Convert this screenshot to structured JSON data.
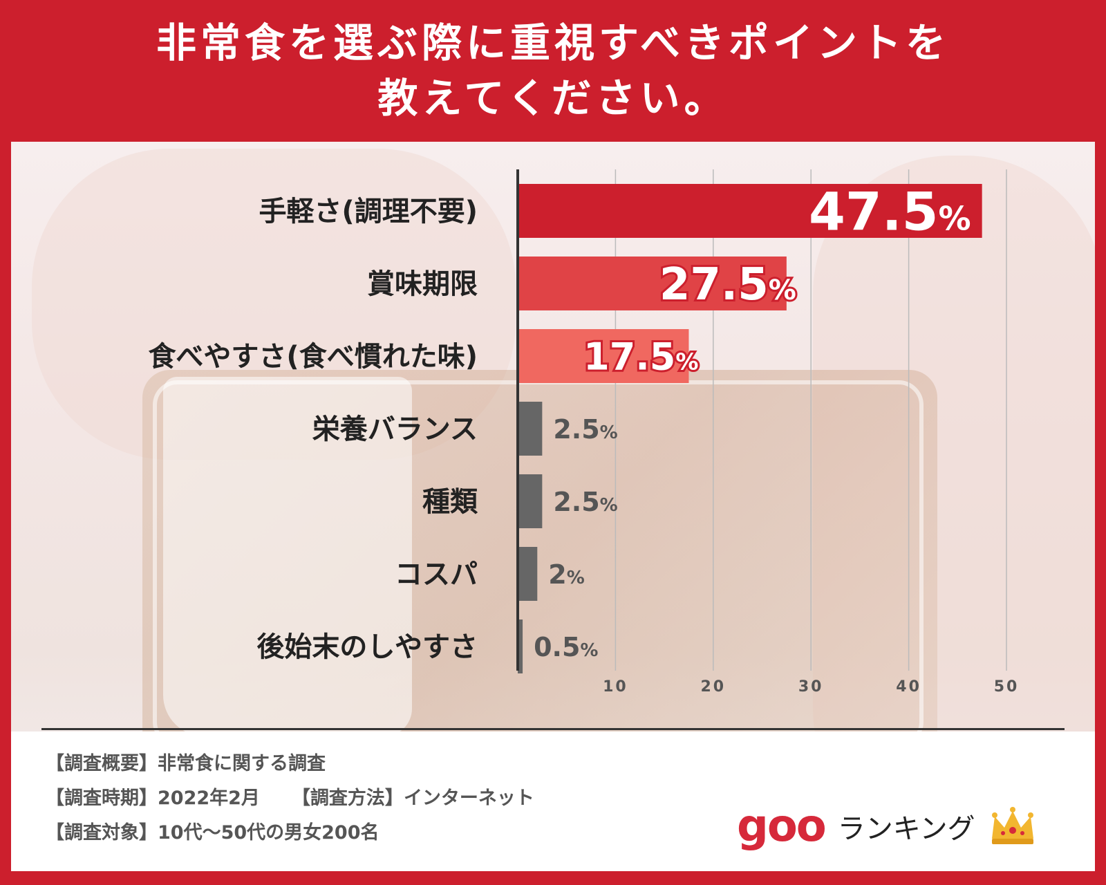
{
  "title": {
    "line1": "非常食を選ぶ際に重視すべきポイントを",
    "line2": "教えてください。"
  },
  "chart_data": {
    "type": "bar",
    "orientation": "horizontal",
    "title": "非常食を選ぶ際に重視すべきポイントを教えてください。",
    "categories": [
      "手軽さ(調理不要)",
      "賞味期限",
      "食べやすさ(食べ慣れた味)",
      "栄養バランス",
      "種類",
      "コスパ",
      "後始末のしやすさ"
    ],
    "values": [
      47.5,
      27.5,
      17.5,
      2.5,
      2.5,
      2,
      0.5
    ],
    "value_labels": [
      "47.5",
      "27.5",
      "17.5",
      "2.5",
      "2.5",
      "2",
      "0.5"
    ],
    "value_suffix": "%",
    "xticks": [
      10,
      20,
      30,
      40,
      50
    ],
    "xlim": [
      0,
      50
    ],
    "grid": true,
    "legend": "none",
    "colors": [
      "#cc1f2d",
      "#e04346",
      "#f06860",
      "#666666",
      "#666666",
      "#666666",
      "#666666"
    ]
  },
  "notes": {
    "summary_label": "【調査概要】",
    "summary_value": "非常食に関する調査",
    "period_label": "【調査時期】",
    "period_value": "2022年2月",
    "method_label": "【調査方法】",
    "method_value": "インターネット",
    "target_label": "【調査対象】",
    "target_value": "10代～50代の男女200名"
  },
  "logo": {
    "brand": "goo",
    "service": "ランキング",
    "icon": "crown-icon",
    "brand_color": "#d6293a",
    "crown_color": "#f2b630"
  }
}
